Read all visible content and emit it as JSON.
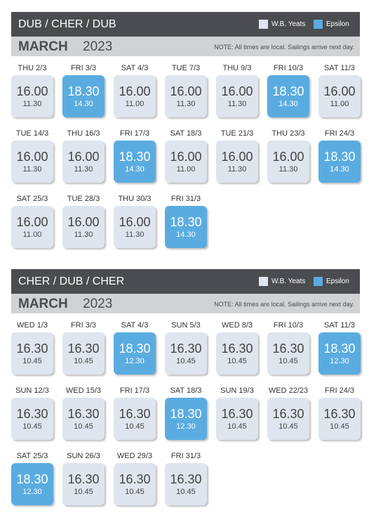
{
  "sections": [
    {
      "title": "DUB / CHER / DUB",
      "legend": [
        {
          "label": "W.B. Yeats",
          "color": "#dfe5ee"
        },
        {
          "label": "Epsilon",
          "color": "#5aace0"
        }
      ],
      "month": "MARCH",
      "year": "2023",
      "note": "NOTE: All times are local. Sailings arrive next day.",
      "days": [
        {
          "label": "THU 2/3",
          "depart": "16.00",
          "arrive": "11.30",
          "color": "#dfe5ee"
        },
        {
          "label": "FRI 3/3",
          "depart": "18.30",
          "arrive": "14.30",
          "color": "#5aace0"
        },
        {
          "label": "SAT 4/3",
          "depart": "16.00",
          "arrive": "11.00",
          "color": "#dfe5ee"
        },
        {
          "label": "TUE 7/3",
          "depart": "16.00",
          "arrive": "11.30",
          "color": "#dfe5ee"
        },
        {
          "label": "THU 9/3",
          "depart": "16.00",
          "arrive": "11.30",
          "color": "#dfe5ee"
        },
        {
          "label": "FRI 10/3",
          "depart": "18.30",
          "arrive": "14.30",
          "color": "#5aace0"
        },
        {
          "label": "SAT 11/3",
          "depart": "16.00",
          "arrive": "11.00",
          "color": "#dfe5ee"
        },
        {
          "label": "TUE 14/3",
          "depart": "16.00",
          "arrive": "11.30",
          "color": "#dfe5ee"
        },
        {
          "label": "THU 16/3",
          "depart": "16.00",
          "arrive": "11.30",
          "color": "#dfe5ee"
        },
        {
          "label": "FRI 17/3",
          "depart": "18.30",
          "arrive": "14.30",
          "color": "#5aace0"
        },
        {
          "label": "SAT 18/3",
          "depart": "16.00",
          "arrive": "11.00",
          "color": "#dfe5ee"
        },
        {
          "label": "TUE 21/3",
          "depart": "16.00",
          "arrive": "11.30",
          "color": "#dfe5ee"
        },
        {
          "label": "THU 23/3",
          "depart": "16.00",
          "arrive": "11.30",
          "color": "#dfe5ee"
        },
        {
          "label": "FRI 24/3",
          "depart": "18.30",
          "arrive": "14.30",
          "color": "#5aace0"
        },
        {
          "label": "SAT 25/3",
          "depart": "16.00",
          "arrive": "11.00",
          "color": "#dfe5ee"
        },
        {
          "label": "TUE 28/3",
          "depart": "16.00",
          "arrive": "11.30",
          "color": "#dfe5ee"
        },
        {
          "label": "THU 30/3",
          "depart": "16.00",
          "arrive": "11.30",
          "color": "#dfe5ee"
        },
        {
          "label": "FRI 31/3",
          "depart": "18.30",
          "arrive": "14.30",
          "color": "#5aace0"
        }
      ]
    },
    {
      "title": "CHER / DUB / CHER",
      "legend": [
        {
          "label": "W.B. Yeats",
          "color": "#dfe5ee"
        },
        {
          "label": "Epsilon",
          "color": "#5aace0"
        }
      ],
      "month": "MARCH",
      "year": "2023",
      "note": "NOTE: All times are local. Sailings arrive next day.",
      "days": [
        {
          "label": "WED 1/3",
          "depart": "16.30",
          "arrive": "10.45",
          "color": "#dfe5ee"
        },
        {
          "label": "FRI 3/3",
          "depart": "16.30",
          "arrive": "10.45",
          "color": "#dfe5ee"
        },
        {
          "label": "SAT 4/3",
          "depart": "18.30",
          "arrive": "12.30",
          "color": "#5aace0"
        },
        {
          "label": "SUN 5/3",
          "depart": "16.30",
          "arrive": "10.45",
          "color": "#dfe5ee"
        },
        {
          "label": "WED 8/3",
          "depart": "16.30",
          "arrive": "10.45",
          "color": "#dfe5ee"
        },
        {
          "label": "FRI 10/3",
          "depart": "16.30",
          "arrive": "10.45",
          "color": "#dfe5ee"
        },
        {
          "label": "SAT 11/3",
          "depart": "18.30",
          "arrive": "12.30",
          "color": "#5aace0"
        },
        {
          "label": "SUN 12/3",
          "depart": "16.30",
          "arrive": "10.45",
          "color": "#dfe5ee"
        },
        {
          "label": "WED 15/3",
          "depart": "16.30",
          "arrive": "10.45",
          "color": "#dfe5ee"
        },
        {
          "label": "FRI 17/3",
          "depart": "16.30",
          "arrive": "10.45",
          "color": "#dfe5ee"
        },
        {
          "label": "SAT 18/3",
          "depart": "18.30",
          "arrive": "12.30",
          "color": "#5aace0"
        },
        {
          "label": "SUN 19/3",
          "depart": "16.30",
          "arrive": "10.45",
          "color": "#dfe5ee"
        },
        {
          "label": "WED 22/23",
          "depart": "16.30",
          "arrive": "10.45",
          "color": "#dfe5ee"
        },
        {
          "label": "FRI 24/3",
          "depart": "16.30",
          "arrive": "10.45",
          "color": "#dfe5ee"
        },
        {
          "label": "SAT 25/3",
          "depart": "18.30",
          "arrive": "12.30",
          "color": "#5aace0"
        },
        {
          "label": "SUN 26/3",
          "depart": "16.30",
          "arrive": "10.45",
          "color": "#dfe5ee"
        },
        {
          "label": "WED 29/3",
          "depart": "16.30",
          "arrive": "10.45",
          "color": "#dfe5ee"
        },
        {
          "label": "FRI 31/3",
          "depart": "16.30",
          "arrive": "10.45",
          "color": "#dfe5ee"
        }
      ]
    }
  ]
}
